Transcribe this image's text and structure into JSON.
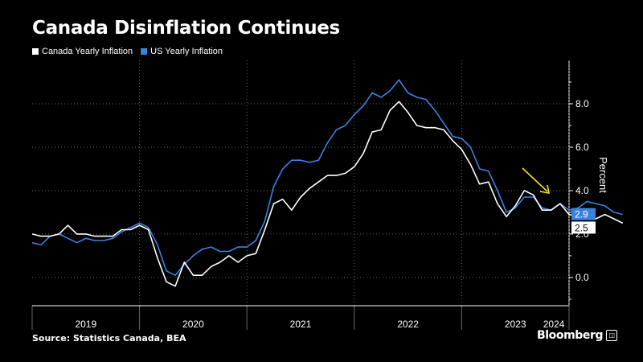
{
  "chart_data": {
    "type": "line",
    "title": "Canada Disinflation Continues",
    "ylabel": "Percent",
    "xlabel": "",
    "ylim": [
      -1.3,
      10.0
    ],
    "yticks": [
      0.0,
      2.0,
      4.0,
      6.0,
      8.0
    ],
    "ytick_labels": [
      "0.0",
      "2.0",
      "4.0",
      "6.0",
      "8.0"
    ],
    "x_start_month": "2019-01",
    "x_range_months": [
      0,
      60
    ],
    "year_labels": [
      "2019",
      "2020",
      "2021",
      "2022",
      "2023",
      "2024"
    ],
    "series": [
      {
        "name": "Canada Yearly Inflation",
        "color": "#ffffff",
        "end_label": "2.5",
        "values": [
          2.0,
          1.9,
          1.9,
          2.0,
          2.4,
          2.0,
          2.0,
          1.9,
          1.9,
          1.9,
          2.2,
          2.2,
          2.4,
          2.2,
          0.9,
          -0.2,
          -0.4,
          0.7,
          0.1,
          0.1,
          0.5,
          0.7,
          1.0,
          0.7,
          1.0,
          1.1,
          2.2,
          3.4,
          3.6,
          3.1,
          3.7,
          4.1,
          4.4,
          4.7,
          4.7,
          4.8,
          5.1,
          5.7,
          6.7,
          6.8,
          7.7,
          8.1,
          7.6,
          7.0,
          6.9,
          6.9,
          6.8,
          6.3,
          5.9,
          5.2,
          4.3,
          4.4,
          3.4,
          2.8,
          3.3,
          4.0,
          3.8,
          3.1,
          3.1,
          3.4,
          2.9,
          2.8,
          2.9,
          2.7,
          2.9,
          2.7,
          2.5
        ]
      },
      {
        "name": "US Yearly Inflation",
        "color": "#3b82e0",
        "end_label": "2.9",
        "values": [
          1.6,
          1.5,
          1.9,
          2.0,
          1.8,
          1.6,
          1.8,
          1.7,
          1.7,
          1.8,
          2.1,
          2.3,
          2.5,
          2.3,
          1.5,
          0.3,
          0.1,
          0.6,
          1.0,
          1.3,
          1.4,
          1.2,
          1.2,
          1.4,
          1.4,
          1.7,
          2.6,
          4.2,
          5.0,
          5.4,
          5.4,
          5.3,
          5.4,
          6.2,
          6.8,
          7.0,
          7.5,
          7.9,
          8.5,
          8.3,
          8.6,
          9.1,
          8.5,
          8.3,
          8.2,
          7.7,
          7.1,
          6.5,
          6.4,
          6.0,
          5.0,
          4.9,
          4.0,
          3.0,
          3.2,
          3.7,
          3.7,
          3.2,
          3.1,
          3.4,
          3.1,
          3.2,
          3.5,
          3.4,
          3.3,
          3.0,
          2.9
        ]
      }
    ]
  },
  "legend": {
    "items": [
      {
        "label": "Canada Yearly Inflation",
        "color": "#ffffff"
      },
      {
        "label": "US Yearly Inflation",
        "color": "#3b82e0"
      }
    ]
  },
  "annotation": {
    "type": "arrow",
    "color": "#f5e21b",
    "icon": "down-right-arrow"
  },
  "source": "Source: Statistics Canada, BEA",
  "brand": {
    "name": "Bloomberg",
    "icon": "bloomberg-logo-icon",
    "icon_glyph": "◫"
  }
}
